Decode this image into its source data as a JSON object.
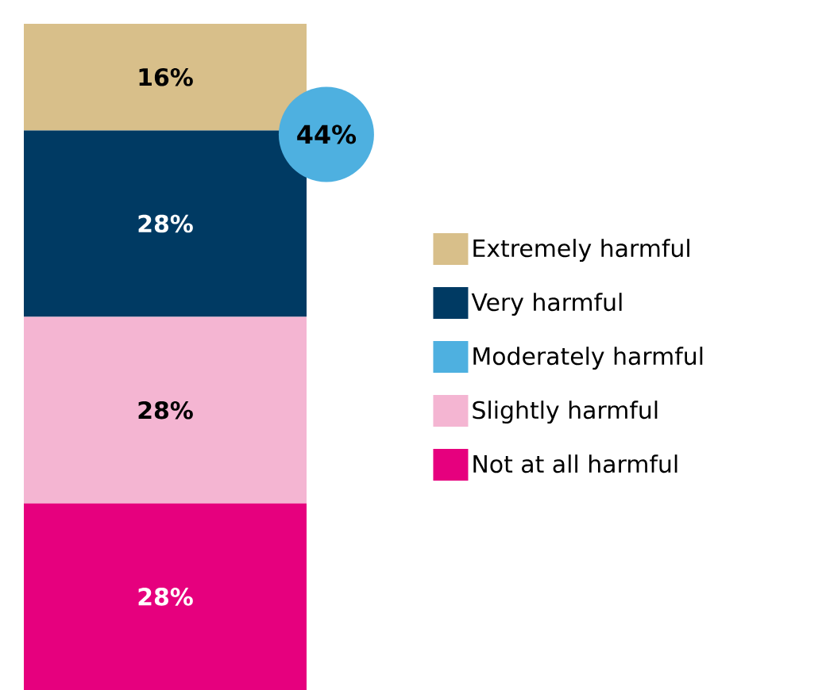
{
  "chart_data": {
    "type": "bar",
    "stacked": true,
    "categories": [
      null
    ],
    "series": [
      {
        "name": "Not at all harmful",
        "color": "#e6007e",
        "values": [
          28
        ],
        "value_labels": [
          "28%"
        ]
      },
      {
        "name": "Slightly harmful",
        "color": "#f4b5d2",
        "values": [
          28
        ],
        "value_labels": [
          "28%"
        ]
      },
      {
        "name": "Moderately harmful",
        "color": "#4eb0e0",
        "values": [
          null
        ],
        "value_labels": [
          null
        ]
      },
      {
        "name": "Very harmful",
        "color": "#003a63",
        "values": [
          28
        ],
        "value_labels": [
          "28%"
        ]
      },
      {
        "name": "Extremely harmful",
        "color": "#d8bf8a",
        "values": [
          16
        ],
        "value_labels": [
          "16%"
        ]
      }
    ],
    "annotations": [
      "44%"
    ],
    "legend": "right"
  }
}
